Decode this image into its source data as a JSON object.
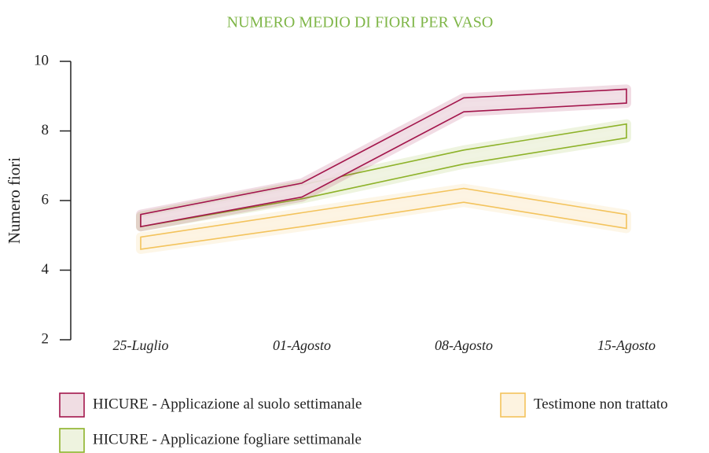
{
  "chart_data": {
    "type": "band",
    "title": "NUMERO MEDIO DI FIORI PER VASO",
    "y_label": "Numero fiori",
    "categories": [
      "25-Luglio",
      "01-Agosto",
      "08-Agosto",
      "15-Agosto"
    ],
    "ylim": [
      2,
      10
    ],
    "yticks": [
      2,
      4,
      6,
      8,
      10
    ],
    "series": [
      {
        "name": "HICURE - Applicazione al suolo settimanale",
        "color": "#a3164c",
        "fill": "#f0dde3",
        "low": [
          5.25,
          6.1,
          8.55,
          8.8
        ],
        "high": [
          5.6,
          6.5,
          8.95,
          9.2
        ]
      },
      {
        "name": "HICURE - Applicazione fogliare settimanale",
        "color": "#8db229",
        "fill": "#eef3df",
        "low": [
          5.25,
          6.05,
          7.05,
          7.8
        ],
        "high": [
          5.55,
          6.45,
          7.45,
          8.2
        ]
      },
      {
        "name": "Testimone non trattato",
        "color": "#f3c35c",
        "fill": "#fdf3e0",
        "low": [
          4.6,
          5.25,
          5.95,
          5.2
        ],
        "high": [
          4.95,
          5.65,
          6.35,
          5.6
        ]
      }
    ]
  }
}
